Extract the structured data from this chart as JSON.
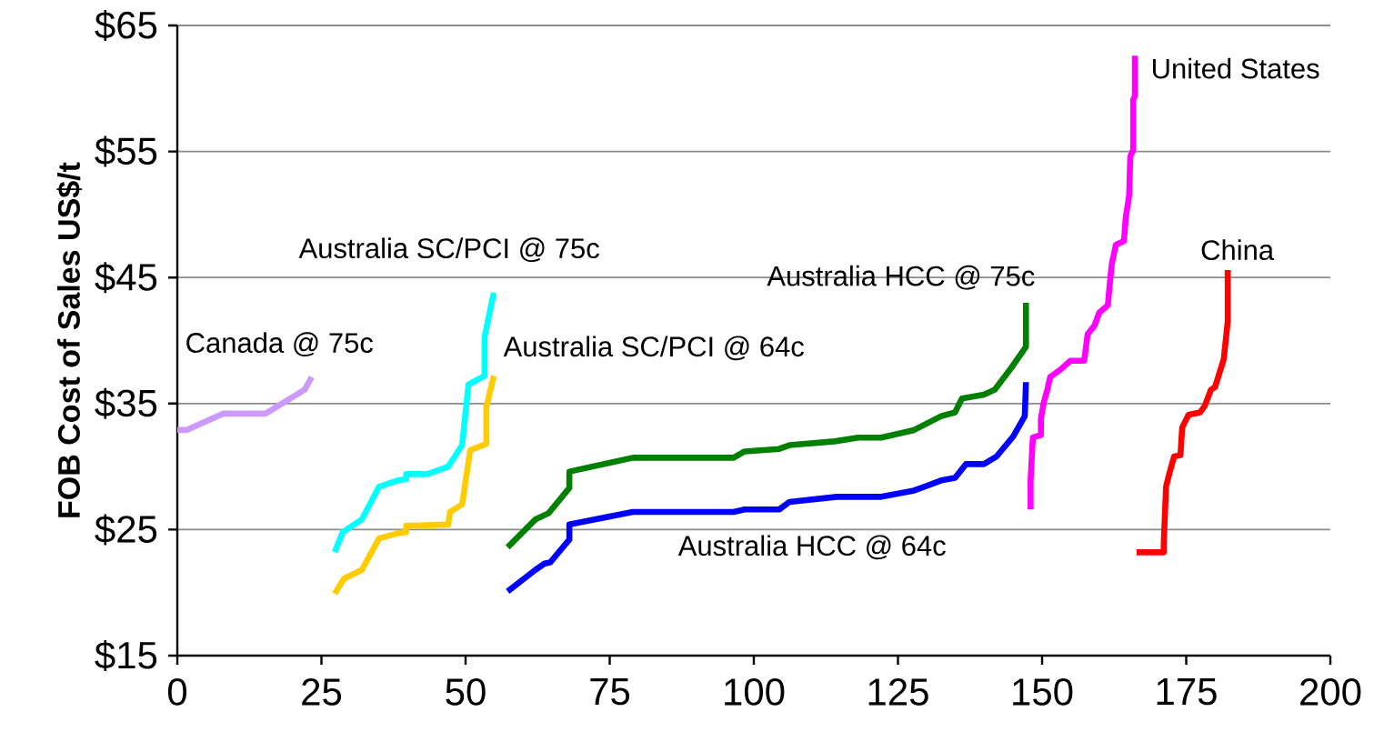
{
  "chart_data": {
    "type": "line",
    "ylabel": "FOB Cost of Sales US$/t",
    "xlim": [
      0,
      200
    ],
    "xticks": [
      0,
      25,
      50,
      75,
      100,
      125,
      150,
      175,
      200
    ],
    "ylim": [
      15,
      65
    ],
    "yticks": [
      {
        "value": 15,
        "label": "$15"
      },
      {
        "value": 25,
        "label": "$25"
      },
      {
        "value": 35,
        "label": "$35"
      },
      {
        "value": 45,
        "label": "$45"
      },
      {
        "value": 55,
        "label": "$55"
      },
      {
        "value": 65,
        "label": "$65"
      }
    ],
    "grid": "y",
    "marker": "none",
    "line_style": "solid",
    "series": [
      {
        "name": "Canada @ 75c",
        "color": "#cc99ff",
        "x": [
          0,
          1.6,
          7.9,
          15.3,
          22.1,
          23.3
        ],
        "values": [
          32.9,
          32.9,
          34.2,
          34.2,
          36.1,
          37.1
        ]
      },
      {
        "name": "Australia SC/PCI @ 75c",
        "color": "#00ffff",
        "x": [
          27.3,
          28.7,
          32.0,
          35.0,
          38.2,
          39.7,
          39.7,
          43.4,
          47.0,
          49.4,
          50.5,
          53.3,
          53.3,
          54.9
        ],
        "values": [
          23.2,
          24.8,
          25.8,
          28.4,
          28.9,
          29.0,
          29.4,
          29.4,
          30.0,
          31.7,
          36.5,
          37.2,
          40.3,
          43.8
        ]
      },
      {
        "name": "Australia SC/PCI @ 64c",
        "color": "#ffcc00",
        "x": [
          27.3,
          28.9,
          32.0,
          35.0,
          38.2,
          39.7,
          39.7,
          47.0,
          47.3,
          49.4,
          50.8,
          53.6,
          53.6,
          54.9
        ],
        "values": [
          19.9,
          21.1,
          21.8,
          24.3,
          24.7,
          24.8,
          25.3,
          25.4,
          26.4,
          27.0,
          31.3,
          31.8,
          34.7,
          37.2
        ]
      },
      {
        "name": "Australia HCC @ 75c",
        "color": "#008000",
        "x": [
          57.3,
          62.1,
          64.4,
          68.0,
          68.0,
          79.0,
          96.5,
          98.4,
          104.4,
          106.2,
          114.0,
          118.1,
          122.1,
          127.8,
          132.5,
          134.9,
          136.1,
          139.9,
          141.8,
          144.6,
          147.2,
          147.2
        ],
        "values": [
          23.6,
          25.8,
          26.3,
          28.3,
          29.6,
          30.7,
          30.7,
          31.2,
          31.4,
          31.7,
          32.0,
          32.3,
          32.3,
          32.9,
          34.0,
          34.3,
          35.4,
          35.7,
          36.1,
          37.8,
          39.5,
          43.0
        ]
      },
      {
        "name": "Australia HCC @ 64c",
        "color": "#0000ff",
        "x": [
          57.3,
          62.1,
          63.7,
          64.7,
          68.0,
          68.0,
          79.0,
          96.5,
          98.4,
          104.4,
          106.2,
          114.4,
          122.1,
          127.8,
          132.5,
          134.9,
          136.8,
          139.9,
          142.1,
          145.0,
          147.0,
          147.2
        ],
        "values": [
          20.1,
          21.8,
          22.3,
          22.4,
          24.2,
          25.4,
          26.4,
          26.4,
          26.6,
          26.6,
          27.2,
          27.6,
          27.6,
          28.1,
          28.9,
          29.1,
          30.2,
          30.2,
          30.8,
          32.4,
          34.0,
          36.7
        ]
      },
      {
        "name": "United States",
        "color": "#ff00ff",
        "x": [
          148.0,
          148.0,
          148.4,
          149.8,
          149.8,
          150.3,
          150.9,
          151.4,
          153.2,
          154.9,
          157.3,
          157.9,
          159.1,
          159.9,
          161.4,
          161.7,
          162.1,
          162.8,
          164.2,
          164.5,
          165.1,
          165.3,
          165.8,
          165.8,
          166.1,
          166.1
        ],
        "values": [
          26.6,
          28.9,
          32.3,
          32.5,
          33.8,
          35.1,
          36.1,
          37.1,
          37.7,
          38.4,
          38.4,
          40.5,
          41.2,
          42.2,
          42.8,
          44.3,
          46.1,
          47.6,
          47.9,
          49.7,
          51.5,
          54.6,
          55.1,
          59.1,
          59.4,
          62.6
        ]
      },
      {
        "name": "China",
        "color": "#ff0000",
        "x": [
          166.4,
          171.1,
          171.1,
          171.5,
          172.1,
          172.9,
          174.0,
          174.3,
          175.4,
          177.4,
          178.2,
          179.3,
          180.0,
          181.5,
          182.2,
          182.2
        ],
        "values": [
          23.2,
          23.2,
          23.9,
          28.4,
          29.5,
          30.8,
          30.9,
          33.1,
          34.1,
          34.3,
          34.8,
          36.1,
          36.3,
          38.5,
          41.5,
          45.6
        ]
      }
    ]
  }
}
